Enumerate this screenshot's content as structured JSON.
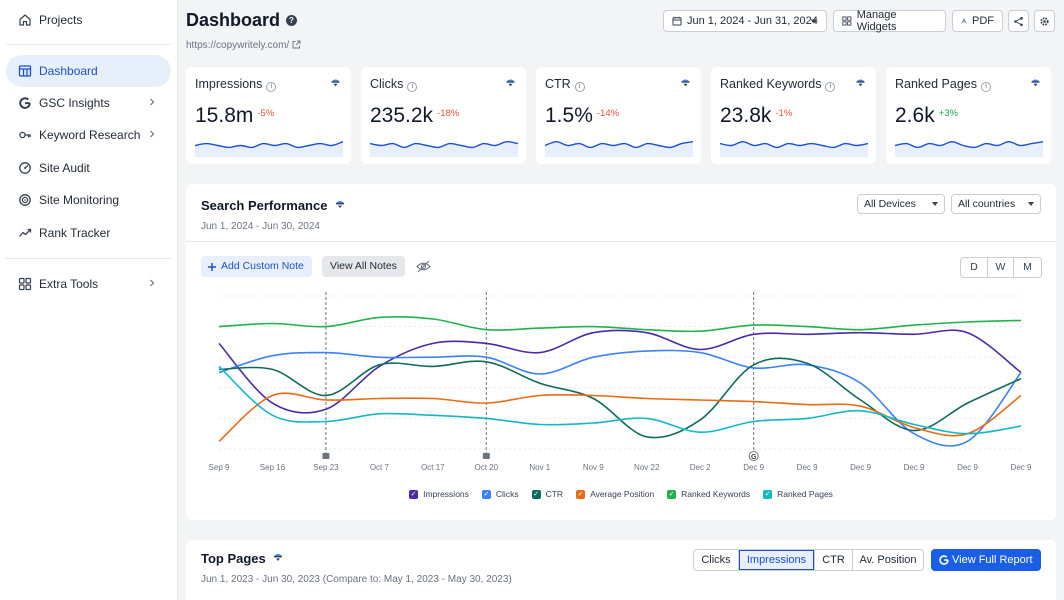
{
  "colors": {
    "accent": "#1e4fd1",
    "impressions": "#4b2aa8",
    "clicks": "#3b82f6",
    "ctr": "#0f6b5c",
    "avg_position": "#ea6a15",
    "ranked_keywords": "#22b14c",
    "ranked_pages": "#14b8c4",
    "negative": "#e8543c",
    "positive": "#16a34a"
  },
  "sidebar": {
    "projects": {
      "label": "Projects",
      "icon": "home-icon"
    },
    "items": [
      {
        "label": "Dashboard",
        "icon": "dashboard-icon",
        "active": true
      },
      {
        "label": "GSC Insights",
        "icon": "google-icon",
        "chevron": true
      },
      {
        "label": "Keyword Research",
        "icon": "keyword-icon",
        "chevron": true
      },
      {
        "label": "Site Audit",
        "icon": "audit-icon"
      },
      {
        "label": "Site Monitoring",
        "icon": "monitoring-icon"
      },
      {
        "label": "Rank Tracker",
        "icon": "trend-icon"
      }
    ],
    "extra": {
      "label": "Extra Tools",
      "icon": "grid-icon",
      "chevron": true
    }
  },
  "header": {
    "title": "Dashboard",
    "url": "https://copywritely.com/",
    "date_range": "Jun 1, 2024 - Jun 31, 2024",
    "manage_widgets": "Manage Widgets",
    "pdf": "PDF"
  },
  "kpis": [
    {
      "label": "Impressions",
      "value": "15.8m",
      "change": "-5%",
      "trend": "down"
    },
    {
      "label": "Clicks",
      "value": "235.2k",
      "change": "-18%",
      "trend": "down"
    },
    {
      "label": "CTR",
      "value": "1.5%",
      "change": "-14%",
      "trend": "down"
    },
    {
      "label": "Ranked Keywords",
      "value": "23.8k",
      "change": "-1%",
      "trend": "down"
    },
    {
      "label": "Ranked Pages",
      "value": "2.6k",
      "change": "+3%",
      "trend": "up"
    }
  ],
  "search_performance": {
    "title": "Search Performance",
    "date_range": "Jun 1, 2024 - Jun 30, 2024",
    "devices": "All Devices",
    "countries": "All countries",
    "add_note": "Add Custom Note",
    "view_notes": "View All Notes",
    "granularity": [
      "D",
      "W",
      "M"
    ],
    "granularity_selected": "D"
  },
  "chart_data": {
    "type": "line",
    "title": "Search Performance",
    "x": [
      "Sep 9",
      "Sep 16",
      "Sep 23",
      "Oct 7",
      "Oct 17",
      "Oct 20",
      "Nov 1",
      "Nov 9",
      "Nov 22",
      "Dec 2",
      "Dec 9",
      "Dec 9",
      "Dec 9",
      "Dec 9",
      "Dec 9",
      "Dec 9"
    ],
    "ylim": [
      0,
      10
    ],
    "grid": true,
    "annotations": [
      {
        "x": "Sep 23",
        "type": "note"
      },
      {
        "x": "Oct 20",
        "type": "note"
      },
      {
        "x": "Dec 9",
        "type": "google-update",
        "label": "G"
      }
    ],
    "series": [
      {
        "name": "Impressions",
        "color": "#4b2aa8",
        "values": [
          6.9,
          3.0,
          2.6,
          5.4,
          6.9,
          6.9,
          6.3,
          7.6,
          7.6,
          6.5,
          7.5,
          7.5,
          7.6,
          7.5,
          7.6,
          5.0
        ]
      },
      {
        "name": "Clicks",
        "color": "#3b82f6",
        "values": [
          5.0,
          6.1,
          6.3,
          6.0,
          6.0,
          6.0,
          4.9,
          6.0,
          6.4,
          6.3,
          5.3,
          5.5,
          4.3,
          1.0,
          0.5,
          5.0
        ]
      },
      {
        "name": "CTR",
        "color": "#0f6b5c",
        "values": [
          5.2,
          5.2,
          3.5,
          5.5,
          5.4,
          5.7,
          4.3,
          3.3,
          0.8,
          1.9,
          5.5,
          5.6,
          3.2,
          1.2,
          3.0,
          4.6
        ]
      },
      {
        "name": "Average Position",
        "color": "#ea6a15",
        "values": [
          0.5,
          3.5,
          3.2,
          3.3,
          3.3,
          3.0,
          3.5,
          3.5,
          3.3,
          3.2,
          3.1,
          2.9,
          2.8,
          1.4,
          1.0,
          3.5
        ]
      },
      {
        "name": "Ranked Keywords",
        "color": "#22b14c",
        "values": [
          8.0,
          8.2,
          8.0,
          8.6,
          8.5,
          7.8,
          7.9,
          8.0,
          7.8,
          7.7,
          8.1,
          8.0,
          7.8,
          8.1,
          8.3,
          8.4
        ]
      },
      {
        "name": "Ranked Pages",
        "color": "#14b8c4",
        "values": [
          5.4,
          2.2,
          1.8,
          2.3,
          2.2,
          2.0,
          1.6,
          1.7,
          2.0,
          1.1,
          1.8,
          2.0,
          2.5,
          1.6,
          1.0,
          1.5
        ]
      }
    ]
  },
  "top_pages": {
    "title": "Top Pages",
    "date_range": "Jun 1, 2023 - Jun 30, 2023 (Compare to: May 1, 2023 - May 30, 2023)",
    "tabs": [
      "Clicks",
      "Impressions",
      "CTR",
      "Av. Position"
    ],
    "selected": "Impressions",
    "report_button": "View Full Report"
  }
}
